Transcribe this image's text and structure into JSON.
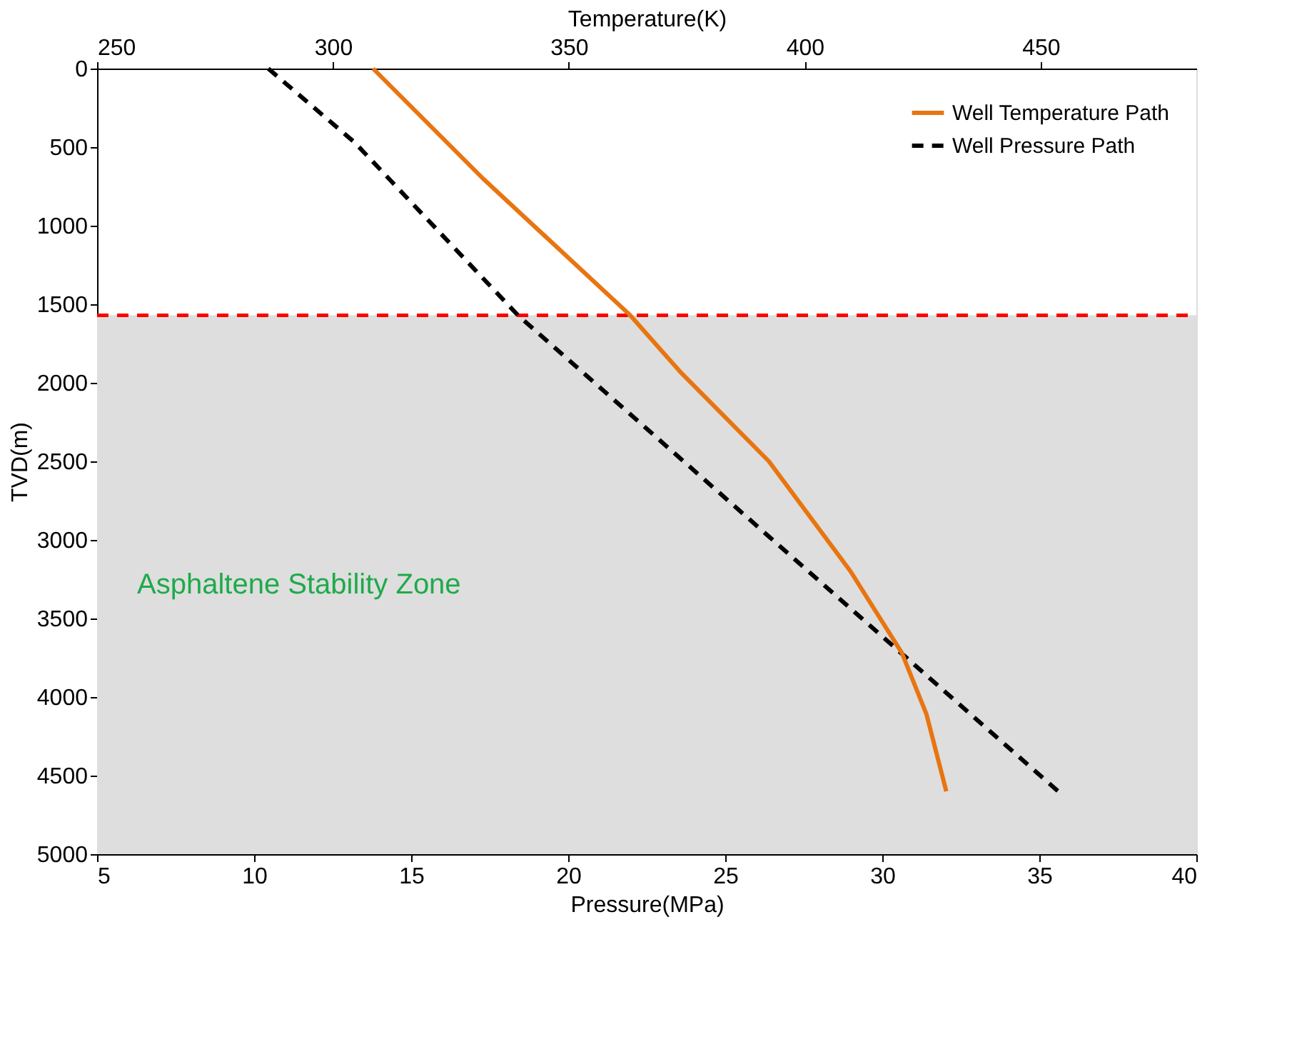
{
  "chart_data": {
    "type": "line",
    "xlabel": "Pressure(MPa)",
    "x2label": "Temperature(K)",
    "ylabel": "TVD(m)",
    "xlim": [
      5,
      40
    ],
    "xticks": [
      5,
      10,
      15,
      20,
      25,
      30,
      35,
      40
    ],
    "x2lim": [
      250,
      483
    ],
    "x2ticks": [
      250,
      300,
      350,
      400,
      450
    ],
    "ylim": [
      5000,
      0
    ],
    "yticks": [
      0,
      500,
      1000,
      1500,
      2000,
      2500,
      3000,
      3500,
      4000,
      4500,
      5000
    ],
    "grid": false,
    "legend": "top right",
    "marker": "none",
    "series": [
      {
        "name": "Well Temperature Path",
        "color": "#e87511",
        "axis": "x2",
        "line_style": "solid",
        "x": [
          308.5,
          331.8,
          363,
          373.6,
          392.4,
          409.7,
          420.6,
          425.8,
          430
        ],
        "values": [
          0,
          700,
          1570,
          1930,
          2500,
          3200,
          3720,
          4110,
          4600
        ]
      },
      {
        "name": "Well Pressure Path",
        "color": "#000000",
        "line_style": "dashed",
        "x": [
          10.45,
          13.2,
          18.4,
          30.6,
          35.6
        ],
        "values": [
          0,
          470,
          1570,
          3720,
          4600
        ]
      }
    ],
    "ref_lines": [
      {
        "axis": "y",
        "value": 1570,
        "color": "#ff0000",
        "line_style": "dashed"
      }
    ],
    "bands": [
      {
        "axis": "y",
        "from": 1570,
        "to": 5000,
        "label": "Asphaltene Stability Zone",
        "color": "#dedede"
      }
    ]
  }
}
